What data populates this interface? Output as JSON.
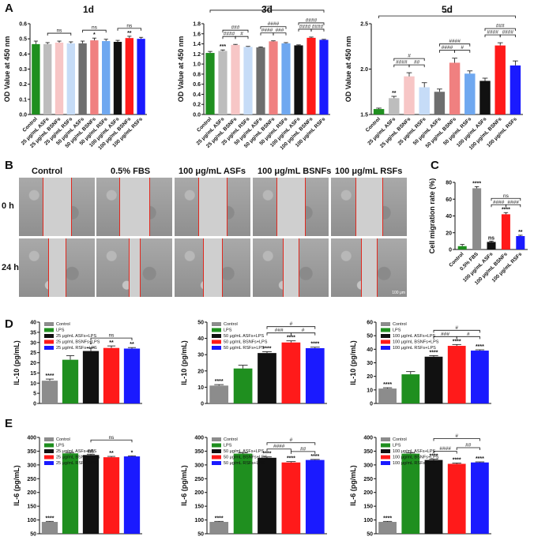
{
  "panel_labels": {
    "A": "A",
    "B": "B",
    "C": "C",
    "D": "D",
    "E": "E"
  },
  "microscopy": {
    "columns": [
      "Control",
      "0.5% FBS",
      "100 μg/mL ASFs",
      "100 μg/mL BSNFs",
      "100 μg/mL RSFs"
    ],
    "rows": [
      "0 h",
      "24 h"
    ],
    "scale_bar": "100 μm",
    "gap_fraction_0h": [
      0.38,
      0.4,
      0.38,
      0.38,
      0.36
    ],
    "gap_fraction_24h": [
      0.22,
      0.14,
      0.24,
      0.2,
      0.2
    ]
  },
  "colors": {
    "control": "#1f9e1f",
    "lps": "#1f9e1f",
    "asf": "#6e6e6e",
    "bsnf": "#f08080",
    "rsf": "#6fa8f0",
    "gray": "#8c8c8c",
    "green": "#1f8f1f",
    "black": "#111111",
    "red": "#ff1a1a",
    "blue": "#1a1aff",
    "lightpink": "#f7c6c6",
    "lightblue": "#c6dcf7",
    "lightgray": "#bdbdbd"
  },
  "chart_data": [
    {
      "id": "A1",
      "type": "bar",
      "title": "1d",
      "ylabel": "OD Value at 450 nm",
      "ylim": [
        0,
        0.6
      ],
      "yticks": [
        "0.0",
        "0.1",
        "0.2",
        "0.3",
        "0.4",
        "0.5",
        "0.6"
      ],
      "categories": [
        "Control",
        "25 μg/mL ASFs",
        "25 μg/mL BSNFs",
        "25 μg/mL RSFs",
        "50 μg/mL ASFs",
        "50 μg/mL BSNFs",
        "50 μg/mL RSFs",
        "100 μg/mL ASFs",
        "100 μg/mL BSNFs",
        "100 μg/mL RSFs"
      ],
      "values": [
        0.465,
        0.465,
        0.475,
        0.47,
        0.47,
        0.49,
        0.485,
        0.48,
        0.505,
        0.5
      ],
      "errors": [
        0.02,
        0.01,
        0.01,
        0.01,
        0.015,
        0.015,
        0.012,
        0.01,
        0.012,
        0.01
      ],
      "colors": [
        "#1f8f1f",
        "#bdbdbd",
        "#f7c6c6",
        "#c6dcf7",
        "#6e6e6e",
        "#f08080",
        "#6fa8f0",
        "#111111",
        "#ff1a1a",
        "#1a1aff"
      ],
      "bar_marks": [
        "",
        "",
        "",
        "",
        "",
        "*",
        "",
        "",
        "**",
        ""
      ],
      "brackets": [
        {
          "from": 1,
          "to": 3,
          "level": 0,
          "text": "ns"
        },
        {
          "from": 4,
          "to": 6,
          "level": 0,
          "text": "ns"
        },
        {
          "from": 7,
          "to": 9,
          "level": 0,
          "text": "ns"
        }
      ]
    },
    {
      "id": "A2",
      "type": "bar",
      "title": "3d",
      "ylabel": "OD Value at 450 nm",
      "ylim": [
        0,
        1.8
      ],
      "yticks": [
        "0.0",
        "0.2",
        "0.4",
        "0.6",
        "0.8",
        "1.0",
        "1.2",
        "1.4",
        "1.6",
        "1.8"
      ],
      "categories": [
        "Control",
        "25 μg/mL ASFs",
        "25 μg/mL BSNFs",
        "25 μg/mL RSFs",
        "50 μg/mL ASFs",
        "50 μg/mL BSNFs",
        "50 μg/mL RSFs",
        "100 μg/mL ASFs",
        "100 μg/mL BSNFs",
        "100 μg/mL RSFs"
      ],
      "values": [
        1.22,
        1.26,
        1.38,
        1.34,
        1.33,
        1.45,
        1.41,
        1.37,
        1.52,
        1.48
      ],
      "errors": [
        0.03,
        0.02,
        0.01,
        0.01,
        0.01,
        0.01,
        0.015,
        0.01,
        0.015,
        0.01
      ],
      "colors": [
        "#1f8f1f",
        "#bdbdbd",
        "#f7c6c6",
        "#c6dcf7",
        "#6e6e6e",
        "#f08080",
        "#6fa8f0",
        "#111111",
        "#ff1a1a",
        "#1a1aff"
      ],
      "bar_marks": [
        "",
        "***",
        "",
        "",
        "",
        "",
        "",
        "",
        "",
        ""
      ],
      "brackets": [
        {
          "from": 0,
          "to": 9,
          "level": 3,
          "text": "****"
        },
        {
          "from": 1,
          "to": 3,
          "level": 1,
          "text": "###"
        },
        {
          "from": 1,
          "to": 2,
          "level": 0,
          "text": "####"
        },
        {
          "from": 2,
          "to": 3,
          "level": 0,
          "text": "#"
        },
        {
          "from": 4,
          "to": 6,
          "level": 1,
          "text": "####"
        },
        {
          "from": 4,
          "to": 5,
          "level": 0,
          "text": "####"
        },
        {
          "from": 5,
          "to": 6,
          "level": 0,
          "text": "###"
        },
        {
          "from": 7,
          "to": 9,
          "level": 1,
          "text": "####"
        },
        {
          "from": 7,
          "to": 8,
          "level": 0,
          "text": "####"
        },
        {
          "from": 8,
          "to": 9,
          "level": 0,
          "text": "####"
        }
      ]
    },
    {
      "id": "A3",
      "type": "bar",
      "title": "5d",
      "ylabel": "OD Value at 450 nm",
      "ylim": [
        1.5,
        2.5
      ],
      "yticks": [
        "1.5",
        "2.0",
        "2.5"
      ],
      "categories": [
        "Control",
        "25 μg/mL ASFs",
        "25 μg/mL BSNFs",
        "25 μg/mL RSFs",
        "50 μg/mL ASFs",
        "50 μg/mL BSNFs",
        "50 μg/mL RSFs",
        "100 μg/mL ASFs",
        "100 μg/mL BSNFs",
        "100 μg/mL RSFs"
      ],
      "values": [
        1.56,
        1.68,
        1.92,
        1.8,
        1.75,
        2.07,
        1.95,
        1.87,
        2.26,
        2.04
      ],
      "errors": [
        0.01,
        0.02,
        0.04,
        0.05,
        0.03,
        0.05,
        0.03,
        0.03,
        0.03,
        0.05
      ],
      "colors": [
        "#1f8f1f",
        "#bdbdbd",
        "#f7c6c6",
        "#c6dcf7",
        "#6e6e6e",
        "#f08080",
        "#6fa8f0",
        "#111111",
        "#ff1a1a",
        "#1a1aff"
      ],
      "bar_marks": [
        "",
        "**",
        "",
        "",
        "",
        "",
        "",
        "",
        "",
        ""
      ],
      "brackets": [
        {
          "from": 0,
          "to": 9,
          "level": 3,
          "text": "****"
        },
        {
          "from": 1,
          "to": 3,
          "level": 1,
          "text": "#"
        },
        {
          "from": 1,
          "to": 2,
          "level": 0,
          "text": "####"
        },
        {
          "from": 2,
          "to": 3,
          "level": 0,
          "text": "##"
        },
        {
          "from": 4,
          "to": 6,
          "level": 1,
          "text": "####"
        },
        {
          "from": 4,
          "to": 5,
          "level": 0,
          "text": "####"
        },
        {
          "from": 5,
          "to": 6,
          "level": 0,
          "text": "#"
        },
        {
          "from": 7,
          "to": 9,
          "level": 1,
          "text": "###"
        },
        {
          "from": 7,
          "to": 8,
          "level": 0,
          "text": "####"
        },
        {
          "from": 8,
          "to": 9,
          "level": 0,
          "text": "####"
        }
      ]
    },
    {
      "id": "C",
      "type": "bar",
      "title": "",
      "ylabel": "Cell migration rate (%)",
      "ylim": [
        0,
        80
      ],
      "yticks": [
        "0",
        "20",
        "40",
        "60",
        "80"
      ],
      "categories": [
        "Control",
        "0.5% FBS",
        "100 μg/mL ASFs",
        "100 μg/mL BSNFs",
        "100 μg/mL RSFs"
      ],
      "values": [
        4,
        73,
        9,
        42,
        16
      ],
      "errors": [
        2,
        2,
        1,
        2,
        1
      ],
      "colors": [
        "#1f8f1f",
        "#8c8c8c",
        "#111111",
        "#ff1a1a",
        "#1a1aff"
      ],
      "bar_marks": [
        "",
        "****",
        "ns",
        "****",
        "**"
      ],
      "brackets": [
        {
          "from": 2,
          "to": 4,
          "level": 1,
          "text": "ns"
        },
        {
          "from": 2,
          "to": 3,
          "level": 0,
          "text": "####"
        },
        {
          "from": 3,
          "to": 4,
          "level": 0,
          "text": "####"
        }
      ]
    },
    {
      "id": "D1",
      "type": "bar",
      "title": "",
      "ylabel": "IL-10 (pg/mL)",
      "ylim": [
        0,
        40
      ],
      "yticks": [
        "0",
        "5",
        "10",
        "15",
        "20",
        "25",
        "30",
        "35",
        "40"
      ],
      "legend": [
        "Control",
        "LPS",
        "25 μg/mL ASFs+LPS",
        "25 μg/mL BSNFs+LPS",
        "25 μg/mL RSFs+LPS"
      ],
      "values": [
        11.2,
        21.5,
        25.8,
        27.3,
        27.0
      ],
      "errors": [
        0.8,
        2.0,
        1.5,
        1.0,
        0.5
      ],
      "colors": [
        "#8c8c8c",
        "#1f8f1f",
        "#111111",
        "#ff1a1a",
        "#1a1aff"
      ],
      "bar_marks": [
        "****",
        "",
        "*",
        "**",
        "**"
      ],
      "brackets": [
        {
          "from": 2,
          "to": 4,
          "level": 0,
          "text": "ns"
        }
      ]
    },
    {
      "id": "D2",
      "type": "bar",
      "title": "",
      "ylabel": "IL-10 (pg/mL)",
      "ylim": [
        0,
        50
      ],
      "yticks": [
        "0",
        "10",
        "20",
        "30",
        "40",
        "50"
      ],
      "legend": [
        "Control",
        "LPS",
        "50 μg/mL ASFs+LPS",
        "50 μg/mL BSNFs+LPS",
        "50 μg/mL RSFs+LPS"
      ],
      "values": [
        11,
        21.5,
        31,
        37.5,
        34
      ],
      "errors": [
        0.6,
        2.0,
        0.8,
        1.0,
        0.6
      ],
      "colors": [
        "#8c8c8c",
        "#1f8f1f",
        "#111111",
        "#ff1a1a",
        "#1a1aff"
      ],
      "bar_marks": [
        "****",
        "",
        "****",
        "****",
        "****"
      ],
      "brackets": [
        {
          "from": 2,
          "to": 4,
          "level": 1,
          "text": "#"
        },
        {
          "from": 2,
          "to": 3,
          "level": 0,
          "text": "###"
        },
        {
          "from": 3,
          "to": 4,
          "level": 0,
          "text": "#"
        }
      ]
    },
    {
      "id": "D3",
      "type": "bar",
      "title": "",
      "ylabel": "IL-10 (pg/mL)",
      "ylim": [
        0,
        60
      ],
      "yticks": [
        "0",
        "10",
        "20",
        "30",
        "40",
        "50",
        "60"
      ],
      "legend": [
        "Control",
        "LPS",
        "100 μg/mL ASFs+LPS",
        "100 μg/mL BSNFs+LPS",
        "100 μg/mL RSFs+LPS"
      ],
      "values": [
        11,
        21.5,
        34.5,
        42.5,
        39
      ],
      "errors": [
        0.6,
        2.0,
        0.8,
        1.0,
        0.6
      ],
      "colors": [
        "#8c8c8c",
        "#1f8f1f",
        "#111111",
        "#ff1a1a",
        "#1a1aff"
      ],
      "bar_marks": [
        "****",
        "",
        "****",
        "****",
        "****"
      ],
      "brackets": [
        {
          "from": 2,
          "to": 4,
          "level": 1,
          "text": "#"
        },
        {
          "from": 2,
          "to": 3,
          "level": 0,
          "text": "###"
        },
        {
          "from": 3,
          "to": 4,
          "level": 0,
          "text": "#"
        }
      ]
    },
    {
      "id": "E1",
      "type": "bar",
      "title": "",
      "ylabel": "IL-6 (pg/mL)",
      "ylim": [
        50,
        400
      ],
      "yticks": [
        "50",
        "100",
        "150",
        "200",
        "250",
        "300",
        "350",
        "400"
      ],
      "legend": [
        "Control",
        "LPS",
        "25 μg/mL ASFs+LPS",
        "25 μg/mL BSNFs+LPS",
        "25 μg/mL RSFs+LPS"
      ],
      "values": [
        93,
        342,
        336,
        328,
        331
      ],
      "errors": [
        2,
        3,
        3,
        3,
        2
      ],
      "colors": [
        "#8c8c8c",
        "#1f8f1f",
        "#111111",
        "#ff1a1a",
        "#1a1aff"
      ],
      "bar_marks": [
        "****",
        "",
        "ns",
        "**",
        "*"
      ],
      "brackets": [
        {
          "from": 2,
          "to": 4,
          "level": 1,
          "text": "ns"
        }
      ]
    },
    {
      "id": "E2",
      "type": "bar",
      "title": "",
      "ylabel": "IL-6 (pg/mL)",
      "ylim": [
        50,
        400
      ],
      "yticks": [
        "50",
        "100",
        "150",
        "200",
        "250",
        "300",
        "350",
        "400"
      ],
      "legend": [
        "Control",
        "LPS",
        "50 μg/mL ASFs+LPS",
        "50 μg/mL BSNFs+LPS",
        "50 μg/mL RSFs+LPS"
      ],
      "values": [
        93,
        341,
        326,
        309,
        318
      ],
      "errors": [
        2,
        3,
        3,
        3,
        2
      ],
      "colors": [
        "#8c8c8c",
        "#1f8f1f",
        "#111111",
        "#ff1a1a",
        "#1a1aff"
      ],
      "bar_marks": [
        "****",
        "",
        "****",
        "****",
        "****"
      ],
      "brackets": [
        {
          "from": 2,
          "to": 4,
          "level": 1,
          "text": "#"
        },
        {
          "from": 2,
          "to": 3,
          "level": 0,
          "text": "####"
        },
        {
          "from": 3,
          "to": 4,
          "level": 0,
          "text": "##"
        }
      ]
    },
    {
      "id": "E3",
      "type": "bar",
      "title": "",
      "ylabel": "IL-6 (pg/mL)",
      "ylim": [
        50,
        400
      ],
      "yticks": [
        "50",
        "100",
        "150",
        "200",
        "250",
        "300",
        "350",
        "400"
      ],
      "legend": [
        "Control",
        "LPS",
        "100 μg/mL ASFs+LPS",
        "100 μg/mL BSNFs+LPS",
        "100 μg/mL RSFs+LPS"
      ],
      "values": [
        93,
        341,
        318,
        304,
        309
      ],
      "errors": [
        2,
        3,
        3,
        3,
        2
      ],
      "colors": [
        "#8c8c8c",
        "#1f8f1f",
        "#111111",
        "#ff1a1a",
        "#1a1aff"
      ],
      "bar_marks": [
        "****",
        "",
        "****",
        "****",
        "****"
      ],
      "brackets": [
        {
          "from": 2,
          "to": 4,
          "level": 2,
          "text": "#"
        },
        {
          "from": 2,
          "to": 3,
          "level": 0,
          "text": "####"
        },
        {
          "from": 3,
          "to": 4,
          "level": 1,
          "text": "##"
        }
      ]
    }
  ]
}
